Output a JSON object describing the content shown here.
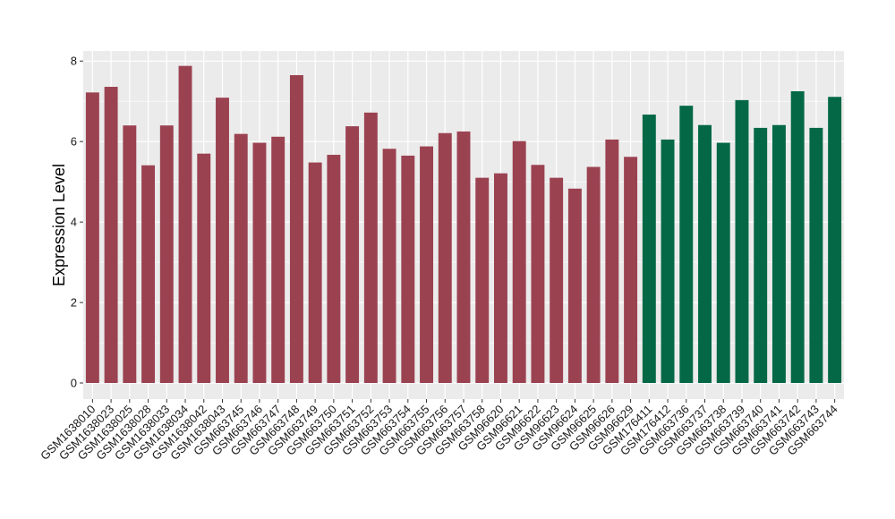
{
  "chart_data": {
    "type": "bar",
    "ylabel": "Expression Level",
    "xlabel": "",
    "ylim": [
      -0.4,
      8.25
    ],
    "yticks": [
      0,
      2,
      4,
      6,
      8
    ],
    "grid": true,
    "legend": "none",
    "colors": {
      "group1": "#9b4251",
      "group2": "#046846",
      "panel": "#ebebeb",
      "grid": "#ffffff"
    },
    "categories": [
      "GSM1638010",
      "GSM1638023",
      "GSM1638025",
      "GSM1638028",
      "GSM1638033",
      "GSM1638034",
      "GSM1638042",
      "GSM1638043",
      "GSM663745",
      "GSM663746",
      "GSM663747",
      "GSM663748",
      "GSM663749",
      "GSM663750",
      "GSM663751",
      "GSM663752",
      "GSM663753",
      "GSM663754",
      "GSM663755",
      "GSM663756",
      "GSM663757",
      "GSM663758",
      "GSM96620",
      "GSM96621",
      "GSM96622",
      "GSM96623",
      "GSM96624",
      "GSM96625",
      "GSM96626",
      "GSM96629",
      "GSM176411",
      "GSM176412",
      "GSM663736",
      "GSM663737",
      "GSM663738",
      "GSM663739",
      "GSM663740",
      "GSM663741",
      "GSM663742",
      "GSM663743",
      "GSM663744"
    ],
    "values": [
      7.22,
      7.36,
      6.4,
      5.41,
      6.4,
      7.88,
      5.7,
      7.09,
      6.19,
      5.97,
      6.12,
      7.65,
      5.48,
      5.67,
      6.38,
      6.72,
      5.82,
      5.65,
      5.88,
      6.21,
      6.25,
      5.1,
      5.21,
      6.01,
      5.42,
      5.1,
      4.83,
      5.37,
      6.05,
      5.62,
      6.67,
      6.05,
      6.89,
      6.41,
      5.97,
      7.03,
      6.34,
      6.41,
      7.25,
      6.34,
      7.11
    ],
    "groups": [
      1,
      1,
      1,
      1,
      1,
      1,
      1,
      1,
      1,
      1,
      1,
      1,
      1,
      1,
      1,
      1,
      1,
      1,
      1,
      1,
      1,
      1,
      1,
      1,
      1,
      1,
      1,
      1,
      1,
      1,
      2,
      2,
      2,
      2,
      2,
      2,
      2,
      2,
      2,
      2,
      2
    ]
  }
}
